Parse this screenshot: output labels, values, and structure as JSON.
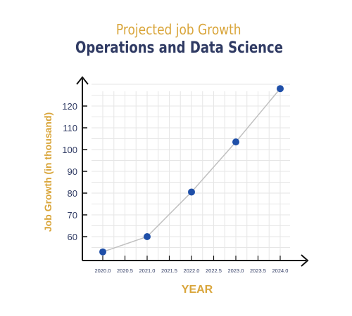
{
  "chart_data": {
    "type": "line",
    "title": "Projected job Growth",
    "subtitle": "Operations and Data Science",
    "xlabel": "YEAR",
    "ylabel": "Job Growth (in thousand)",
    "x": [
      2020,
      2021,
      2022,
      2023,
      2024
    ],
    "y": [
      53,
      60,
      80.5,
      103.5,
      128
    ],
    "xlim": [
      2020,
      2024
    ],
    "ylim": [
      53,
      128
    ],
    "xticks": [
      "2020.0",
      "2020.5",
      "2021.0",
      "2021.5",
      "2022.0",
      "2022.5",
      "2023.0",
      "2023.5",
      "2024.0"
    ],
    "yticks": [
      "60",
      "70",
      "80",
      "90",
      "100",
      "110",
      "120"
    ],
    "grid": true,
    "line_color": "#c0c0c0",
    "marker_color": "#1f4fa8",
    "title_color": "#d9a53a",
    "subtitle_color": "#2f3a63"
  }
}
